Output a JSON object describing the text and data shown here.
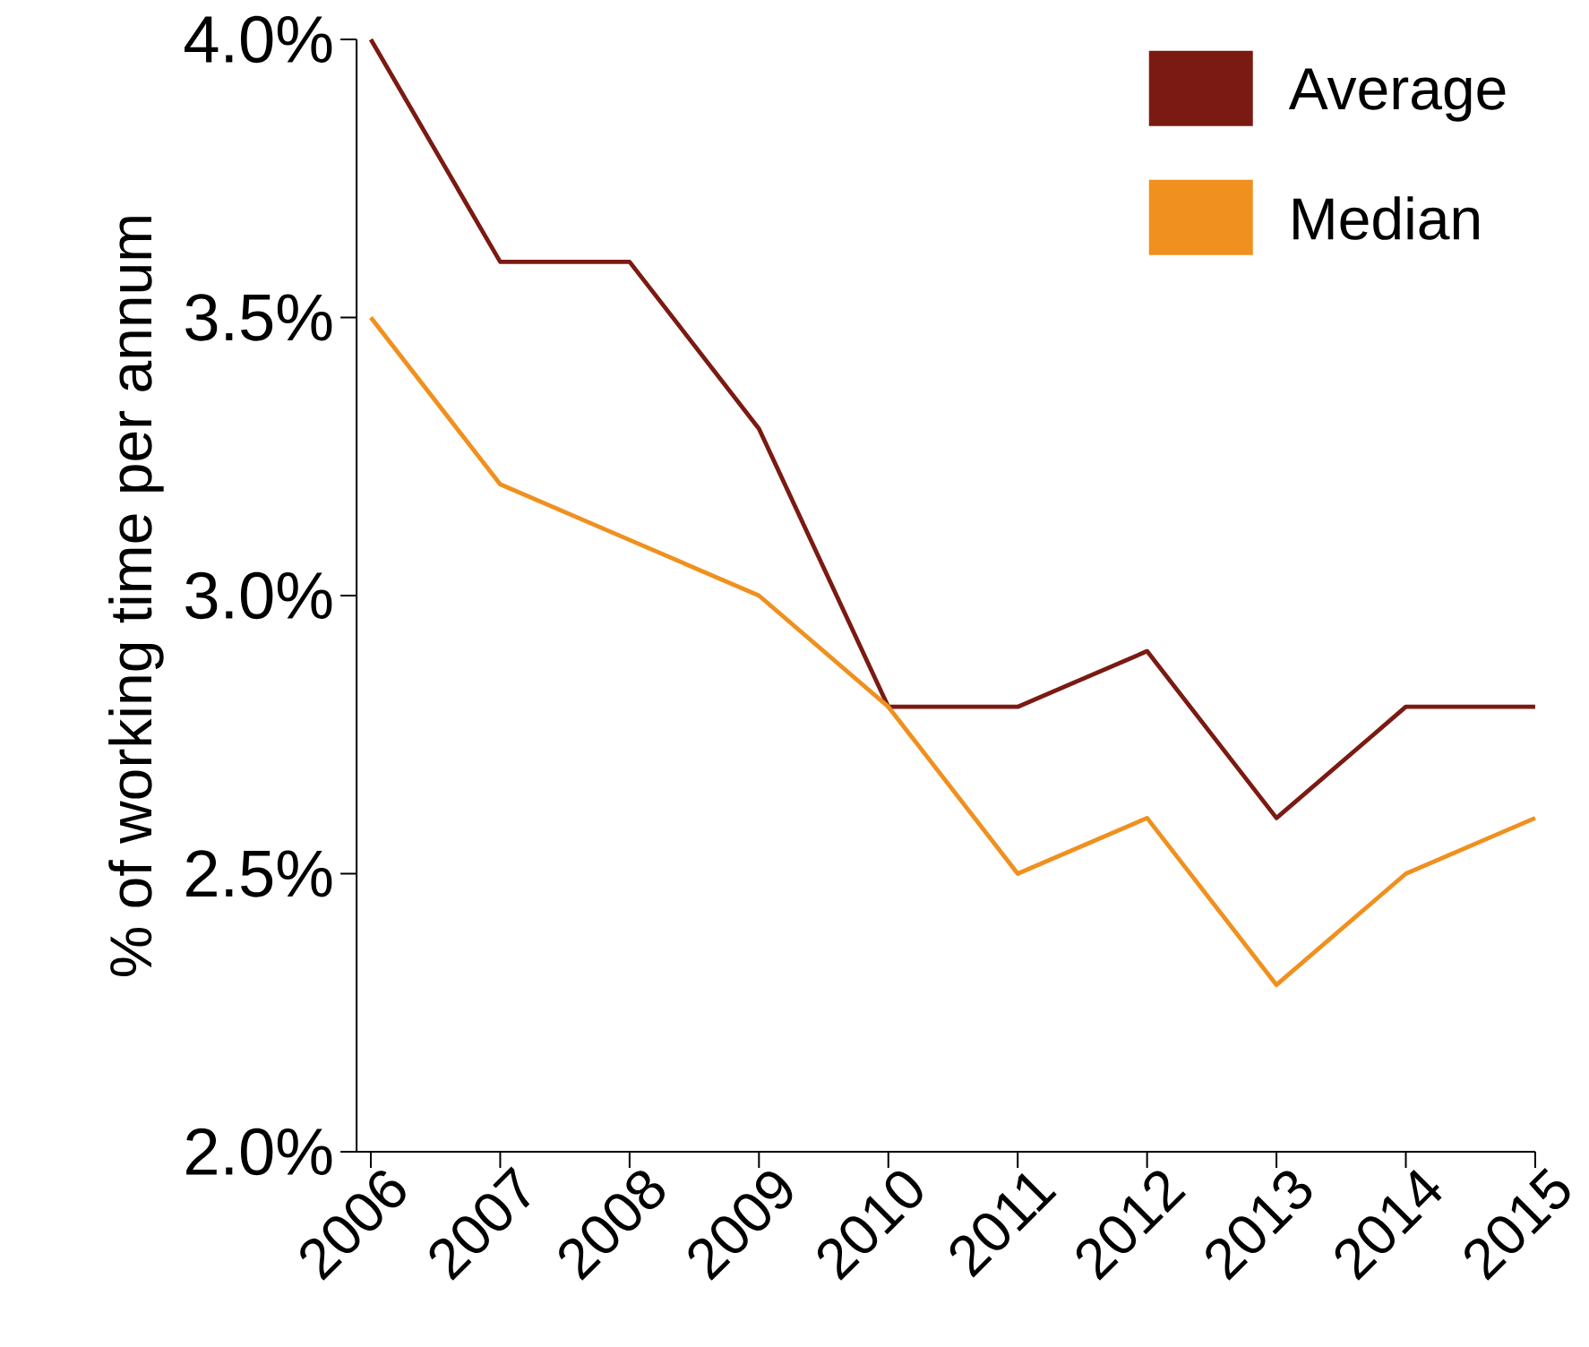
{
  "chart_data": {
    "type": "line",
    "ylabel": "% of working time per annum",
    "categories": [
      "2006",
      "2007",
      "2008",
      "2009",
      "2010",
      "2011",
      "2012",
      "2013",
      "2014",
      "2015"
    ],
    "series": [
      {
        "name": "Average",
        "color": "#7b1a12",
        "values": [
          4.0,
          3.6,
          3.6,
          3.3,
          2.8,
          2.8,
          2.9,
          2.6,
          2.8,
          2.8
        ]
      },
      {
        "name": "Median",
        "color": "#f0901e",
        "values": [
          3.5,
          3.2,
          3.1,
          3.0,
          2.8,
          2.5,
          2.6,
          2.3,
          2.5,
          2.6
        ]
      }
    ],
    "ylim": [
      2.0,
      4.0
    ],
    "yticks": [
      {
        "value": 2.0,
        "label": "2.0%"
      },
      {
        "value": 2.5,
        "label": "2.5%"
      },
      {
        "value": 3.0,
        "label": "3.0%"
      },
      {
        "value": 3.5,
        "label": "3.5%"
      },
      {
        "value": 4.0,
        "label": "4.0%"
      }
    ],
    "grid": false,
    "legend": "top right",
    "marker": "none",
    "line_style": "solid"
  }
}
